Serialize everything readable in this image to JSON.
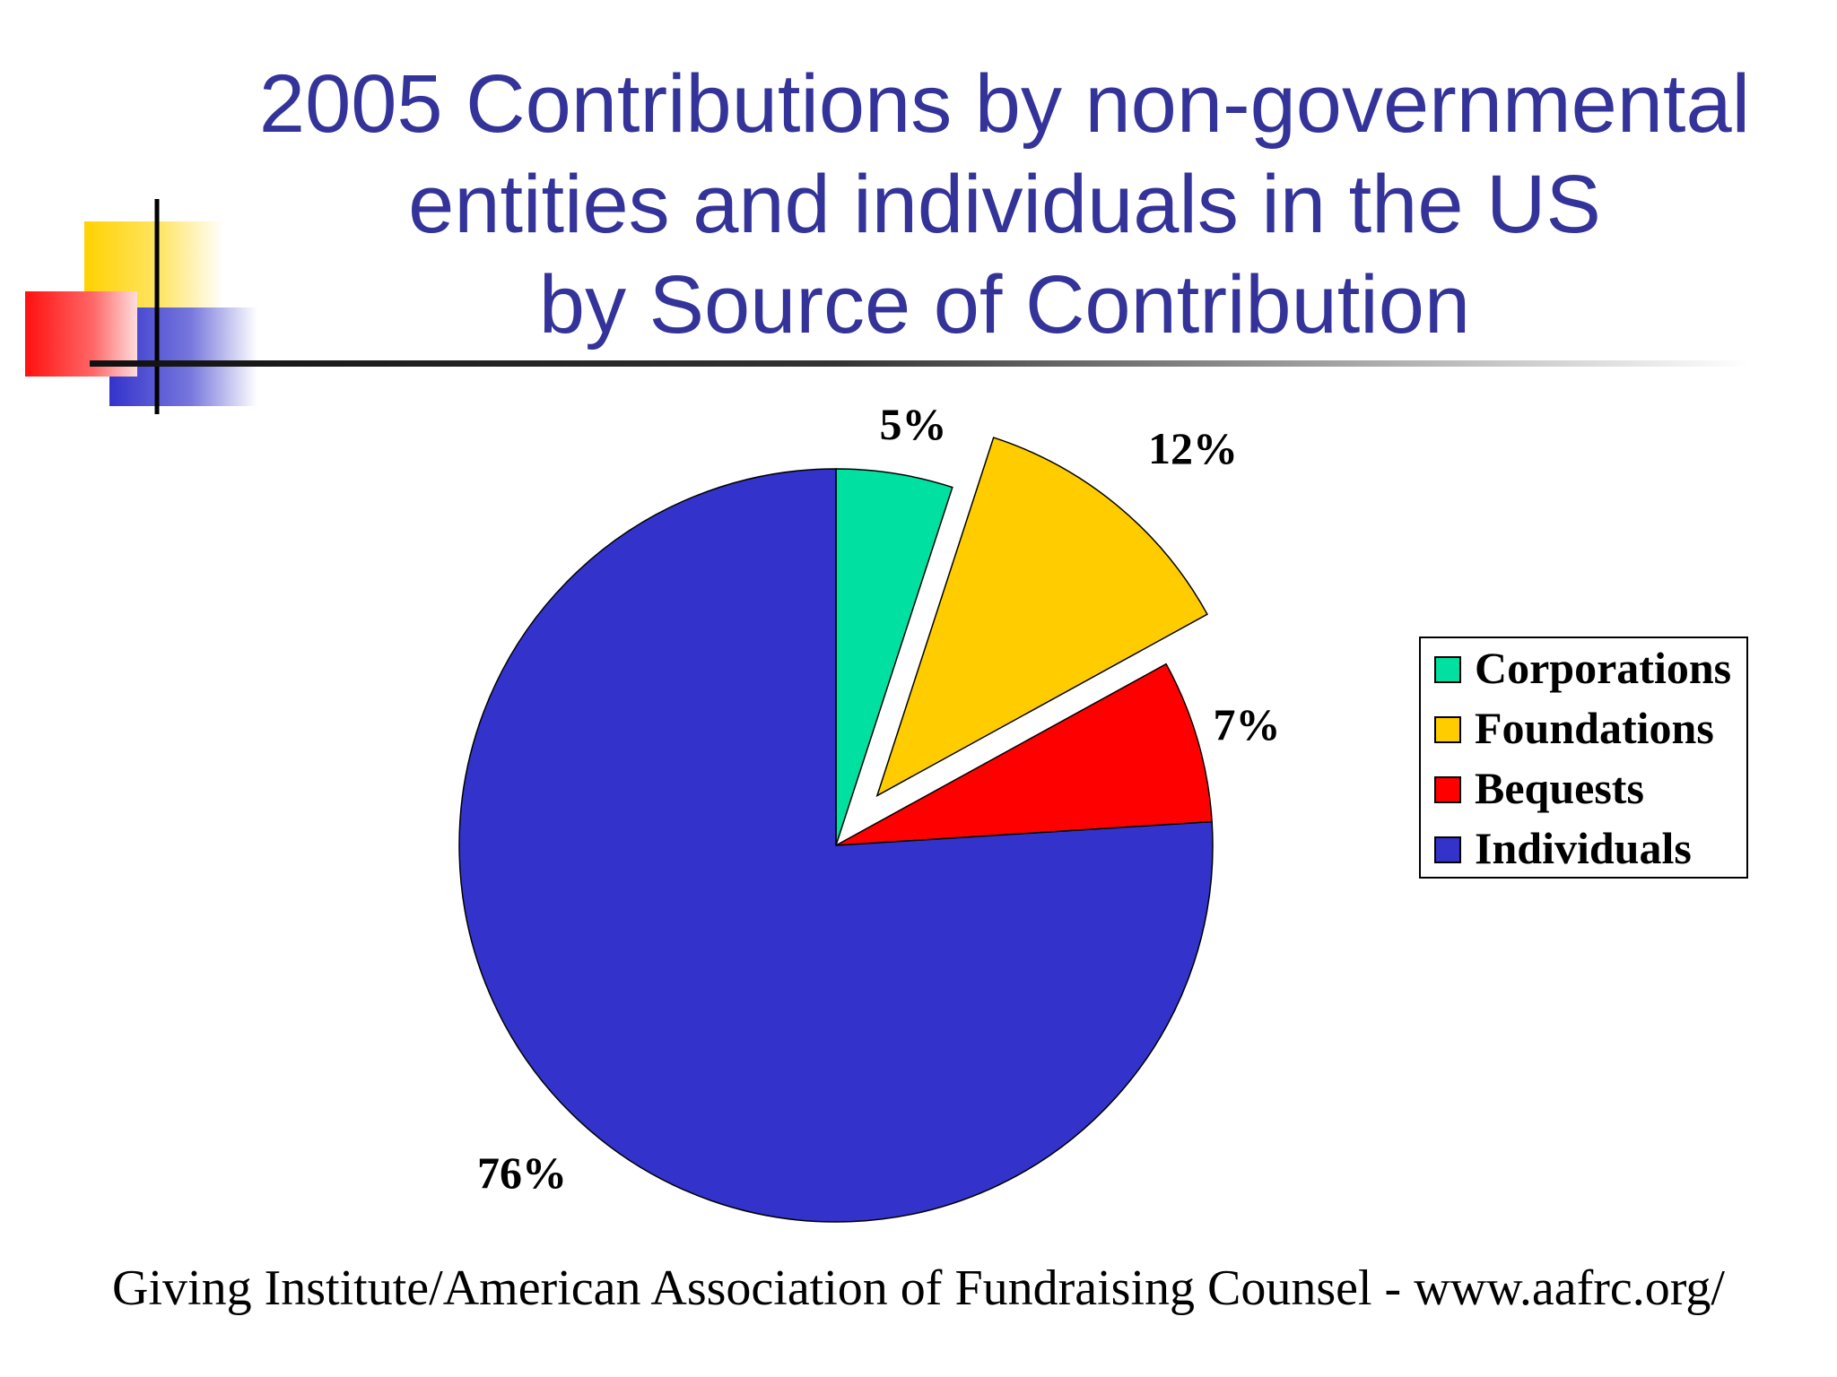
{
  "title": {
    "line1": "2005 Contributions by non-governmental",
    "line2": "entities and individuals in the US",
    "line3": "by Source of Contribution"
  },
  "chart_data": {
    "type": "pie",
    "title": "2005 Contributions by non-governmental entities and individuals in the US by Source of Contribution",
    "categories": [
      "Corporations",
      "Foundations",
      "Bequests",
      "Individuals"
    ],
    "values": [
      5,
      12,
      7,
      76
    ],
    "labels": [
      "5%",
      "12%",
      "7%",
      "76%"
    ],
    "colors": [
      "#00E0A0",
      "#FFCC00",
      "#FF0000",
      "#3333CC"
    ],
    "exploded": [
      false,
      true,
      false,
      false
    ],
    "legend_position": "right"
  },
  "footer": {
    "source": "Giving Institute/American Association of Fundraising Counsel - www.aafrc.org/"
  }
}
